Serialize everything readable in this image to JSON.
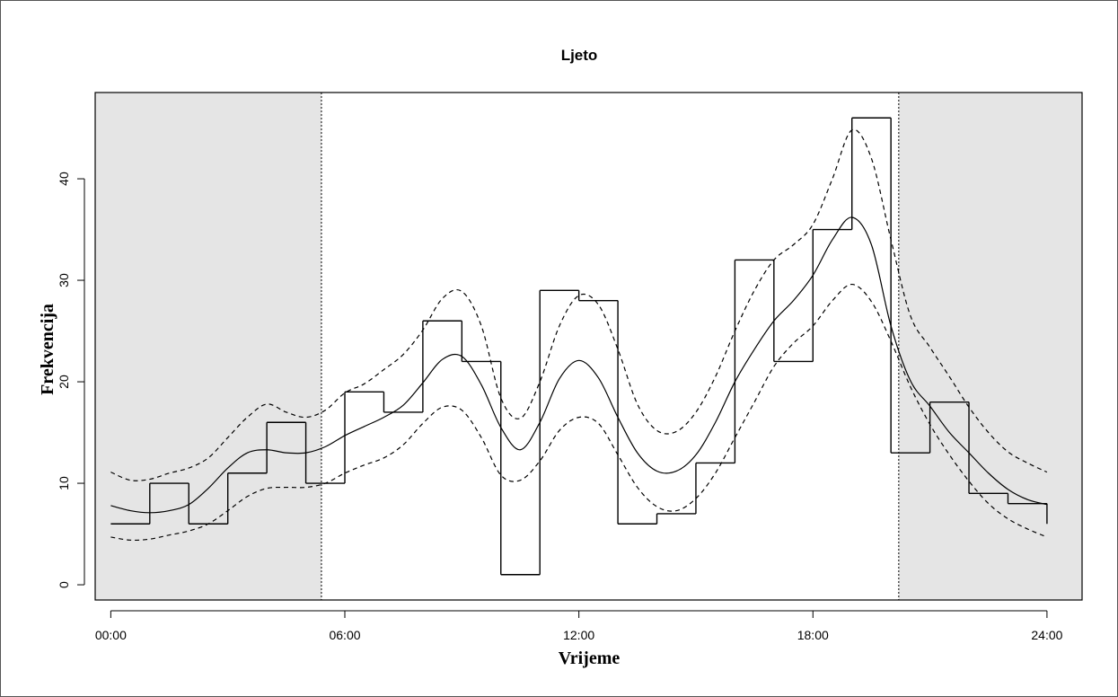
{
  "chart_data": {
    "type": "line",
    "title": "Ljeto",
    "xlabel": "Vrijeme",
    "ylabel": "Frekvencija",
    "xlim": [
      -0.4,
      24.9
    ],
    "ylim": [
      -1.5,
      48.5
    ],
    "x_ticks": [
      0,
      6,
      12,
      18,
      24
    ],
    "x_tick_labels": [
      "00:00",
      "06:00",
      "12:00",
      "18:00",
      "24:00"
    ],
    "y_ticks": [
      0,
      10,
      20,
      30,
      40
    ],
    "y_tick_labels": [
      "0",
      "10",
      "20",
      "30",
      "40"
    ],
    "night_shading": [
      [
        -0.4,
        5.4
      ],
      [
        20.2,
        24.9
      ]
    ],
    "shading_color": "#e5e5e5",
    "histogram": {
      "hours": [
        0,
        1,
        2,
        3,
        4,
        5,
        6,
        7,
        8,
        9,
        10,
        11,
        12,
        13,
        14,
        15,
        16,
        17,
        18,
        19,
        20,
        21,
        22,
        23
      ],
      "values": [
        6,
        10,
        6,
        11,
        16,
        10,
        19,
        17,
        26,
        22,
        1,
        29,
        28,
        6,
        7,
        12,
        32,
        22,
        35,
        46,
        13,
        18,
        9,
        8
      ],
      "end_value": 6
    },
    "series": [
      {
        "name": "",
        "style": "solid",
        "x": [
          0,
          0.5,
          1,
          1.5,
          2,
          2.5,
          3,
          3.5,
          4,
          4.5,
          5,
          5.5,
          6,
          6.5,
          7,
          7.5,
          8,
          8.5,
          9,
          9.5,
          10,
          10.5,
          11,
          11.5,
          12,
          12.5,
          13,
          13.5,
          14,
          14.5,
          15,
          15.5,
          16,
          16.5,
          17,
          17.5,
          18,
          18.5,
          19,
          19.5,
          20,
          20.5,
          21,
          21.5,
          22,
          22.5,
          23,
          23.5,
          24
        ],
        "y": [
          7.8,
          7.3,
          7.1,
          7.3,
          7.9,
          9.5,
          11.5,
          13,
          13.3,
          13,
          13,
          13.6,
          14.7,
          15.6,
          16.5,
          17.7,
          19.9,
          22.2,
          22.5,
          19.7,
          15.5,
          13.3,
          16,
          20.3,
          22.1,
          20.4,
          16.5,
          13,
          11.2,
          11.2,
          12.8,
          16,
          20,
          23.2,
          26,
          28,
          30.5,
          34,
          36.2,
          33.5,
          25.5,
          20.1,
          17.6,
          15,
          13,
          11,
          9.4,
          8.4,
          7.9
        ]
      },
      {
        "name": "",
        "style": "dashed",
        "x": [
          0,
          0.5,
          1,
          1.5,
          2,
          2.5,
          3,
          3.5,
          4,
          4.5,
          5,
          5.5,
          6,
          6.5,
          7,
          7.5,
          8,
          8.5,
          9,
          9.5,
          10,
          10.5,
          11,
          11.5,
          12,
          12.5,
          13,
          13.5,
          14,
          14.5,
          15,
          15.5,
          16,
          16.5,
          17,
          17.5,
          18,
          18.5,
          19,
          19.5,
          20,
          20.5,
          21,
          21.5,
          22,
          22.5,
          23,
          23.5,
          24
        ],
        "y": [
          11.1,
          10.3,
          10.4,
          11,
          11.5,
          12.5,
          14.5,
          16.5,
          17.8,
          17,
          16.5,
          17.2,
          18.9,
          19.8,
          21.2,
          22.7,
          25.1,
          28.2,
          28.9,
          25.5,
          18.4,
          16.4,
          20,
          25.5,
          28.5,
          27.6,
          23.2,
          17.8,
          15.2,
          15.1,
          17,
          20.5,
          25,
          29,
          32,
          33.5,
          35.5,
          40,
          44.8,
          42,
          34,
          26.5,
          23.4,
          20.5,
          17.5,
          15,
          13.1,
          12,
          11.1
        ]
      },
      {
        "name": "",
        "style": "dashed",
        "x": [
          0,
          0.5,
          1,
          1.5,
          2,
          2.5,
          3,
          3.5,
          4,
          4.5,
          5,
          5.5,
          6,
          6.5,
          7,
          7.5,
          8,
          8.5,
          9,
          9.5,
          10,
          10.5,
          11,
          11.5,
          12,
          12.5,
          13,
          13.5,
          14,
          14.5,
          15,
          15.5,
          16,
          16.5,
          17,
          17.5,
          18,
          18.5,
          19,
          19.5,
          20,
          20.5,
          21,
          21.5,
          22,
          22.5,
          23,
          23.5,
          24
        ],
        "y": [
          4.7,
          4.4,
          4.5,
          4.9,
          5.3,
          6,
          7.3,
          8.7,
          9.5,
          9.6,
          9.6,
          10,
          11,
          11.8,
          12.5,
          13.8,
          15.9,
          17.5,
          17.2,
          14.5,
          10.8,
          10.3,
          12.2,
          15.2,
          16.5,
          15.9,
          12.8,
          9.6,
          7.7,
          7.3,
          8.5,
          11,
          14.5,
          18,
          21.5,
          23.8,
          25.5,
          28,
          29.6,
          27.9,
          24,
          19.5,
          15.8,
          12.8,
          10.2,
          8,
          6.5,
          5.5,
          4.7
        ]
      }
    ]
  }
}
